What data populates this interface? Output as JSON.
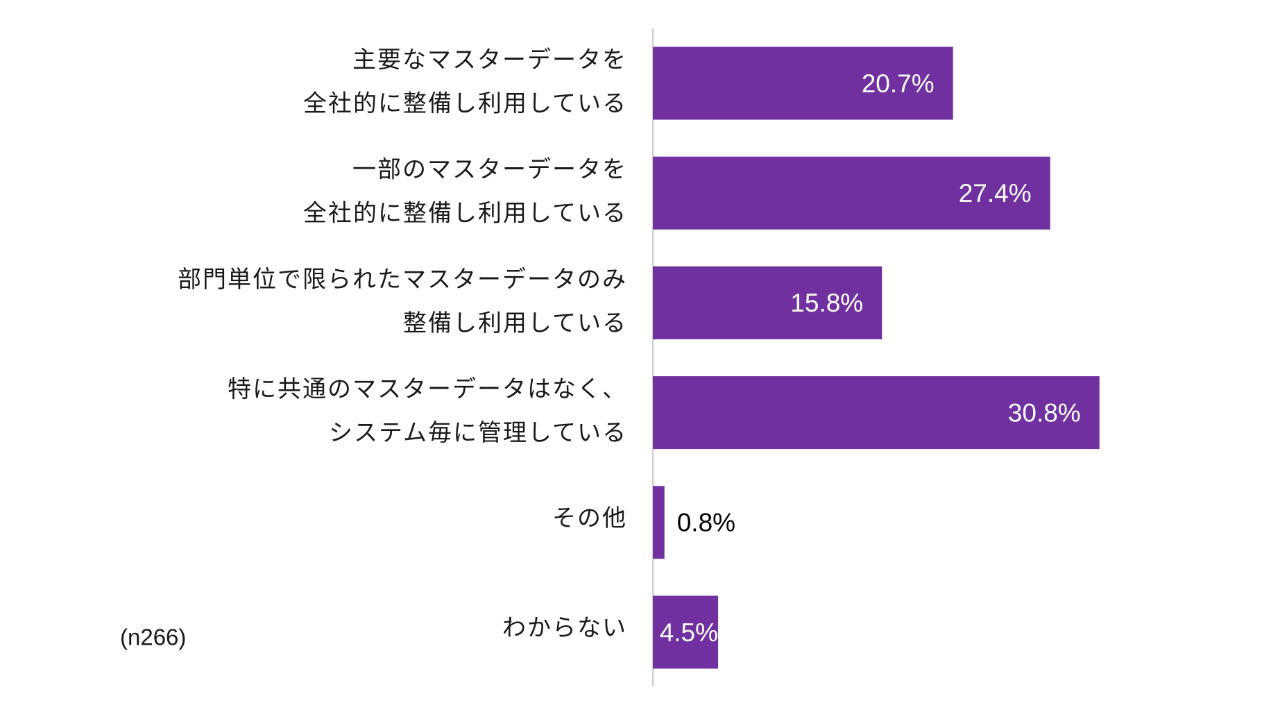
{
  "chart_data": {
    "type": "bar",
    "orientation": "horizontal",
    "categories": [
      [
        "主要なマスターデータを",
        "全社的に整備し利用している"
      ],
      [
        "一部のマスターデータを",
        "全社的に整備し利用している"
      ],
      [
        "部門単位で限られたマスターデータのみ",
        "整備し利用している"
      ],
      [
        "特に共通のマスターデータはなく、",
        "システム毎に管理している"
      ],
      [
        "その他"
      ],
      [
        "わからない"
      ]
    ],
    "values": [
      20.7,
      27.4,
      15.8,
      30.8,
      0.8,
      4.5
    ],
    "value_labels": [
      "20.7%",
      "27.4%",
      "15.8%",
      "30.8%",
      "0.8%",
      "4.5%"
    ],
    "color": "#7030a0",
    "xlim": [
      0,
      40
    ],
    "annotation": "(n266)"
  }
}
